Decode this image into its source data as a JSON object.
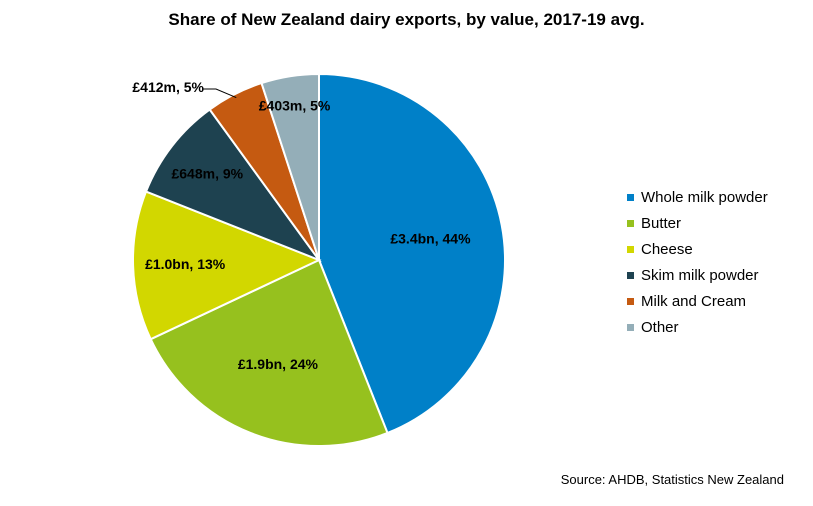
{
  "chart_data": {
    "type": "pie",
    "title": "Share of New Zealand dairy exports, by value, 2017-19 avg.",
    "series": [
      {
        "name": "Whole milk powder",
        "value": 44,
        "label": "£3.4bn, 44%",
        "color": "#0080C8"
      },
      {
        "name": "Butter",
        "value": 24,
        "label": "£1.9bn, 24%",
        "color": "#96C11E"
      },
      {
        "name": "Cheese",
        "value": 13,
        "label": "£1.0bn, 13%",
        "color": "#D2D700"
      },
      {
        "name": "Skim milk powder",
        "value": 9,
        "label": "£648m, 9%",
        "color": "#1E4250"
      },
      {
        "name": "Milk and Cream",
        "value": 5,
        "label": "£412m, 5%",
        "color": "#C55A11"
      },
      {
        "name": "Other",
        "value": 5,
        "label": "£403m, 5%",
        "color": "#94AEB8"
      }
    ],
    "legend_position": "right",
    "source": "Source: AHDB, Statistics New Zealand"
  }
}
